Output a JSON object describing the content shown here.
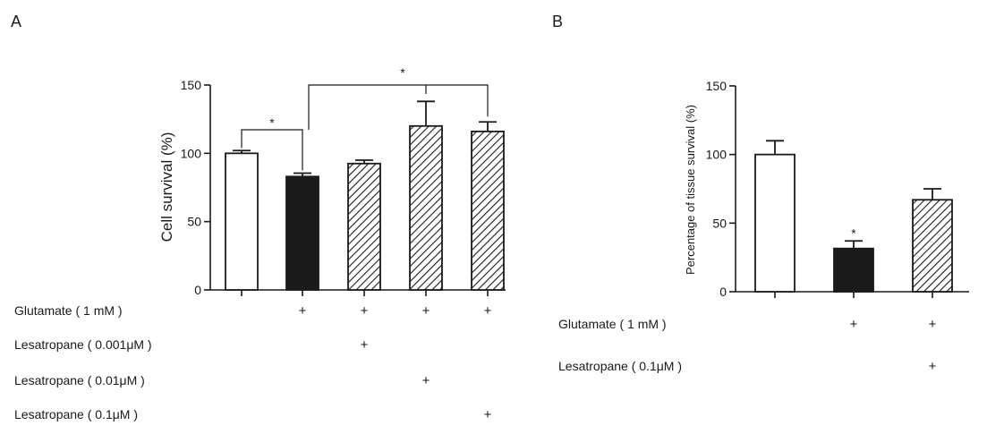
{
  "panels": [
    "A",
    "B"
  ],
  "chart_data": [
    {
      "type": "bar",
      "panel": "A",
      "ylabel": "Cell survival (%)",
      "ylim": [
        0,
        150
      ],
      "yticks": [
        "0",
        "50",
        "100",
        "150"
      ],
      "bars": [
        {
          "value": 100,
          "error": 2,
          "fill": "white"
        },
        {
          "value": 83,
          "error": 2.5,
          "fill": "black"
        },
        {
          "value": 92.5,
          "error": 2.5,
          "fill": "hatch"
        },
        {
          "value": 120,
          "error": 18,
          "fill": "hatch"
        },
        {
          "value": 116,
          "error": 7,
          "fill": "hatch"
        }
      ],
      "conditions": [
        {
          "label": "Glutamate ( 1 mM )",
          "marks": [
            false,
            true,
            true,
            true,
            true
          ]
        },
        {
          "label": "Lesatropane ( 0.001μM )",
          "marks": [
            false,
            false,
            true,
            false,
            false
          ]
        },
        {
          "label": "Lesatropane ( 0.01μM )",
          "marks": [
            false,
            false,
            false,
            true,
            false
          ]
        },
        {
          "label": "Lesatropane ( 0.1μM )",
          "marks": [
            false,
            false,
            false,
            false,
            true
          ]
        }
      ],
      "significance": [
        {
          "from": 0,
          "to": 1,
          "label": "*"
        },
        {
          "from": 1,
          "to": [
            3,
            4
          ],
          "label": "*"
        }
      ]
    },
    {
      "type": "bar",
      "panel": "B",
      "ylabel": "Percentage of tissue survival (%)",
      "ylim": [
        0,
        150
      ],
      "yticks": [
        "0",
        "50",
        "100",
        "150"
      ],
      "bars": [
        {
          "value": 100,
          "error": 10,
          "fill": "white"
        },
        {
          "value": 31.5,
          "error": 5.5,
          "fill": "black",
          "annotation": "*"
        },
        {
          "value": 67,
          "error": 8,
          "fill": "hatch"
        }
      ],
      "conditions": [
        {
          "label": "Glutamate ( 1 mM )",
          "marks": [
            false,
            true,
            true
          ]
        },
        {
          "label": "Lesatropane ( 0.1μM )",
          "marks": [
            false,
            false,
            true
          ]
        }
      ]
    }
  ],
  "mark_symbol": "+"
}
